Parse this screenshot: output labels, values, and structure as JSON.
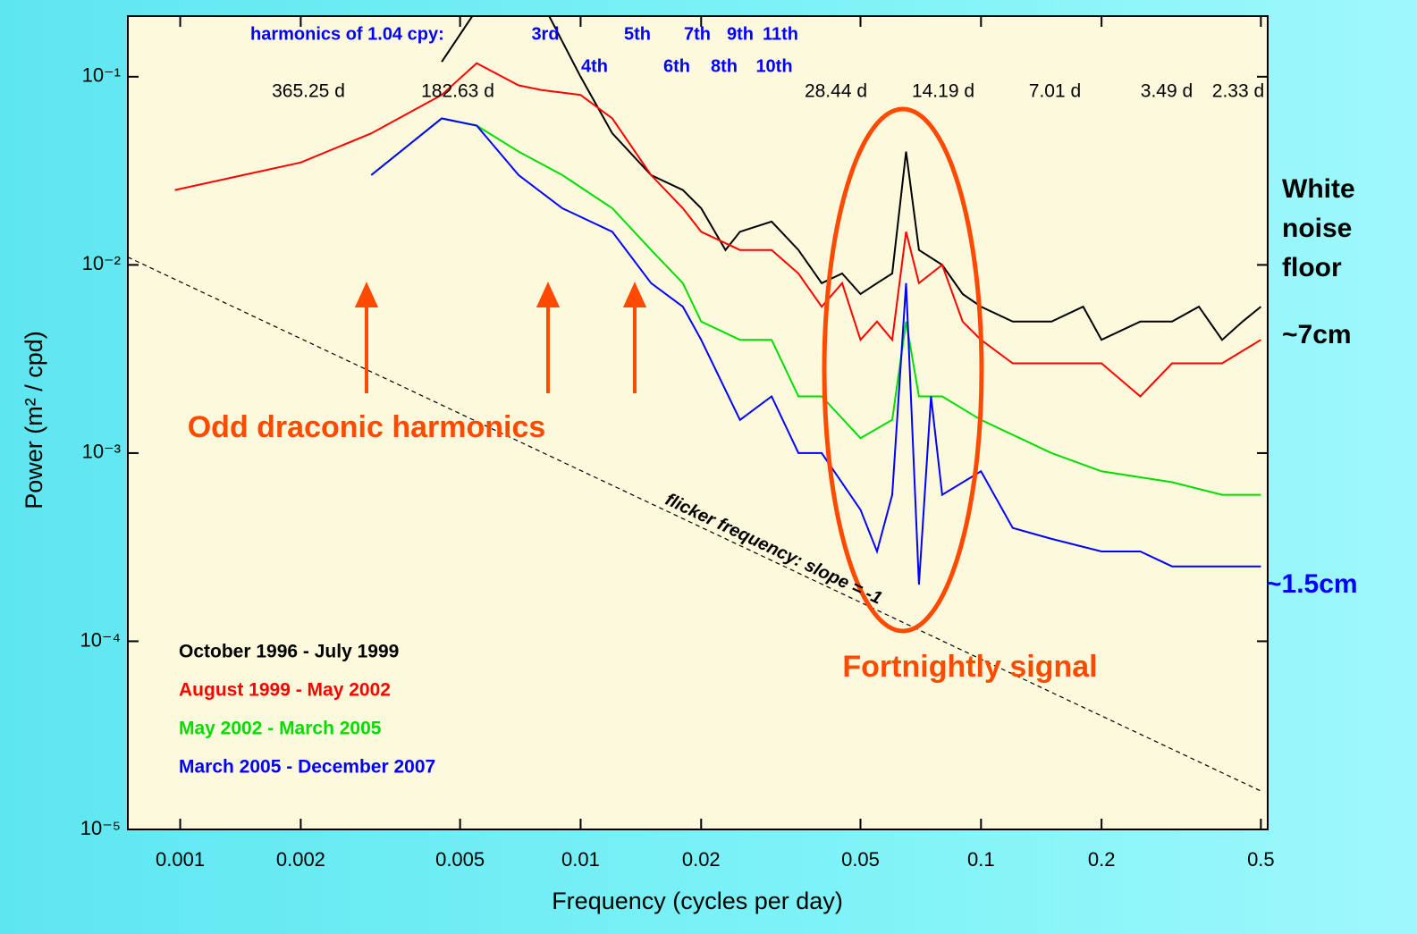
{
  "chart_data": {
    "type": "line",
    "x_label": "Frequency (cycles per day)",
    "y_label": "Power (m² / cpd)",
    "log_x": true,
    "log_y": true,
    "xlim": [
      0.00074,
      0.52
    ],
    "ylim": [
      1e-05,
      0.21
    ],
    "xticks": [
      0.001,
      0.002,
      0.005,
      0.01,
      0.02,
      0.05,
      0.1,
      0.2,
      0.5
    ],
    "yticks": [
      {
        "value": 0.1,
        "label": "10⁻¹"
      },
      {
        "value": 0.01,
        "label": "10⁻²"
      },
      {
        "value": 0.001,
        "label": "10⁻³"
      },
      {
        "value": 0.0001,
        "label": "10⁻⁴"
      },
      {
        "value": 1e-05,
        "label": "10⁻⁵"
      }
    ],
    "series": [
      {
        "name": "October 1996 - July 1999",
        "color": "#000000",
        "x": [
          0.0045,
          0.006,
          0.008,
          0.01,
          0.012,
          0.015,
          0.018,
          0.02,
          0.023,
          0.025,
          0.03,
          0.035,
          0.04,
          0.045,
          0.05,
          0.055,
          0.06,
          0.065,
          0.07,
          0.08,
          0.09,
          0.1,
          0.12,
          0.15,
          0.18,
          0.2,
          0.25,
          0.3,
          0.35,
          0.4,
          0.45,
          0.5
        ],
        "values": [
          0.12,
          0.3,
          0.25,
          0.1,
          0.05,
          0.03,
          0.025,
          0.02,
          0.012,
          0.015,
          0.017,
          0.012,
          0.008,
          0.009,
          0.007,
          0.008,
          0.009,
          0.04,
          0.012,
          0.01,
          0.007,
          0.006,
          0.005,
          0.005,
          0.006,
          0.004,
          0.005,
          0.005,
          0.006,
          0.004,
          0.005,
          0.006
        ]
      },
      {
        "name": "August 1999 - May 2002",
        "color": "#ff0000",
        "x": [
          0.00097,
          0.002,
          0.003,
          0.0045,
          0.0055,
          0.007,
          0.008,
          0.01,
          0.012,
          0.015,
          0.018,
          0.02,
          0.025,
          0.03,
          0.035,
          0.04,
          0.045,
          0.05,
          0.055,
          0.06,
          0.065,
          0.07,
          0.08,
          0.09,
          0.1,
          0.12,
          0.15,
          0.2,
          0.25,
          0.3,
          0.4,
          0.5
        ],
        "values": [
          0.025,
          0.035,
          0.05,
          0.08,
          0.118,
          0.09,
          0.085,
          0.08,
          0.06,
          0.03,
          0.02,
          0.015,
          0.012,
          0.012,
          0.009,
          0.006,
          0.008,
          0.004,
          0.005,
          0.004,
          0.015,
          0.008,
          0.01,
          0.005,
          0.004,
          0.003,
          0.003,
          0.003,
          0.002,
          0.003,
          0.003,
          0.004
        ]
      },
      {
        "name": "May 2002 - March 2005",
        "color": "#00dd00",
        "x": [
          0.003,
          0.0045,
          0.0055,
          0.007,
          0.009,
          0.012,
          0.015,
          0.018,
          0.02,
          0.025,
          0.03,
          0.035,
          0.04,
          0.05,
          0.06,
          0.065,
          0.07,
          0.08,
          0.1,
          0.15,
          0.2,
          0.3,
          0.4,
          0.5
        ],
        "values": [
          0.03,
          0.06,
          0.055,
          0.04,
          0.03,
          0.02,
          0.012,
          0.008,
          0.005,
          0.004,
          0.004,
          0.002,
          0.002,
          0.0012,
          0.0015,
          0.005,
          0.002,
          0.002,
          0.0015,
          0.001,
          0.0008,
          0.0007,
          0.0006,
          0.0006
        ]
      },
      {
        "name": "March 2005 - December 2007",
        "color": "#0000ff",
        "x": [
          0.003,
          0.0045,
          0.0055,
          0.007,
          0.009,
          0.012,
          0.015,
          0.018,
          0.02,
          0.025,
          0.03,
          0.035,
          0.04,
          0.05,
          0.055,
          0.06,
          0.065,
          0.07,
          0.075,
          0.08,
          0.1,
          0.12,
          0.15,
          0.2,
          0.25,
          0.3,
          0.4,
          0.5
        ],
        "values": [
          0.03,
          0.06,
          0.055,
          0.03,
          0.02,
          0.015,
          0.008,
          0.006,
          0.004,
          0.0015,
          0.002,
          0.001,
          0.001,
          0.0005,
          0.0003,
          0.0006,
          0.008,
          0.0002,
          0.002,
          0.0006,
          0.0008,
          0.0004,
          0.00035,
          0.0003,
          0.0003,
          0.00025,
          0.00025,
          0.00025
        ]
      }
    ],
    "reference_line": {
      "label": "flicker frequency: slope = -1",
      "x": [
        0.00074,
        0.5
      ],
      "values": [
        0.011,
        1.6e-05
      ]
    },
    "harmonics_label": "harmonics of 1.04 cpy:",
    "harmonics": [
      "3rd",
      "4th",
      "5th",
      "6th",
      "7th",
      "8th",
      "9th",
      "10th",
      "11th"
    ],
    "periods": [
      "365.25 d",
      "182.63 d",
      "28.44 d",
      "14.19 d",
      "7.01 d",
      "3.49 d",
      "2.33 d"
    ],
    "annotations": [
      "Odd draconic harmonics",
      "Fortnightly signal"
    ],
    "side_labels": [
      "White noise floor",
      "~7cm",
      "~1.5cm"
    ]
  }
}
